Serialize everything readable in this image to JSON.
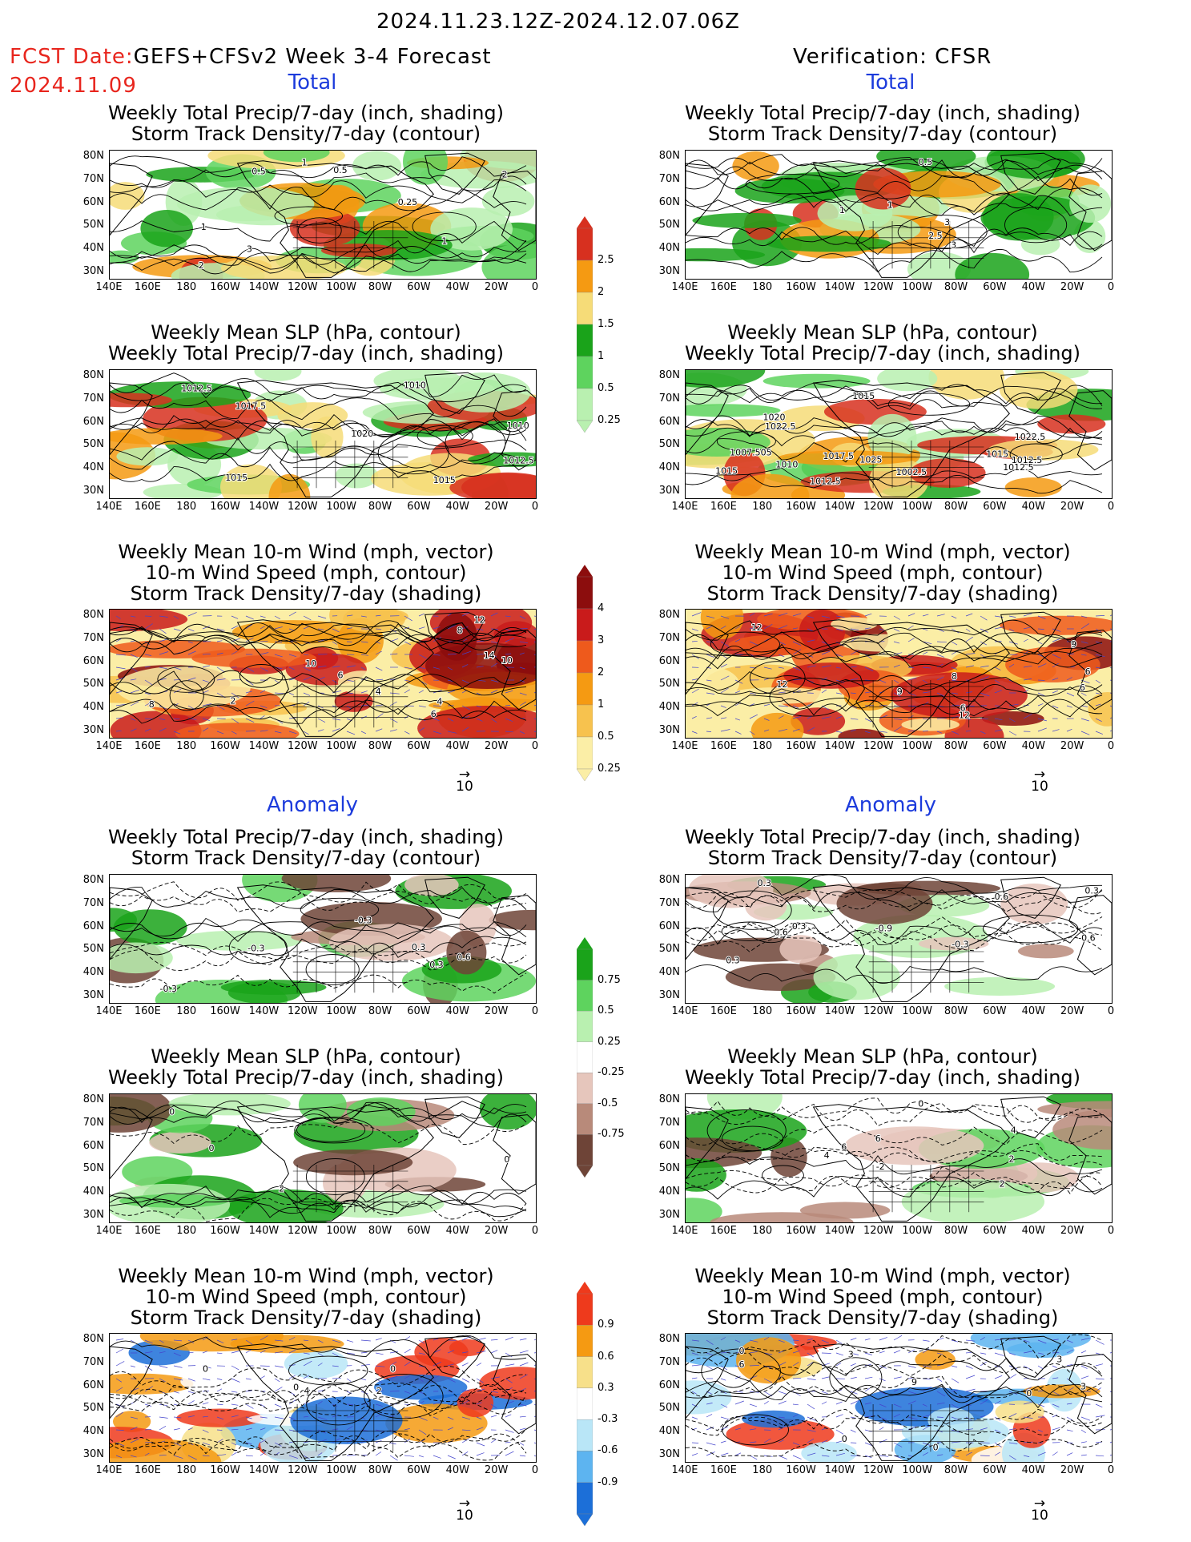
{
  "header": {
    "date_range": "2024.11.23.12Z-2024.12.07.06Z",
    "fcst_label": "FCST Date:",
    "fcst_model": "GEFS+CFSv2 Week 3-4 Forecast",
    "fcst_date": "2024.11.09",
    "verification": "Verification: CFSR"
  },
  "sections": {
    "total": "Total",
    "anomaly": "Anomaly"
  },
  "titles": {
    "precip_storm": [
      "Weekly Total Precip/7-day (inch, shading)",
      "Storm Track Density/7-day (contour)"
    ],
    "slp_precip": [
      "Weekly Mean SLP (hPa, contour)",
      "Weekly Total Precip/7-day (inch, shading)"
    ],
    "wind_storm": [
      "Weekly Mean 10-m Wind (mph, vector)",
      "10-m Wind Speed (mph, contour)",
      "Storm Track Density/7-day (shading)"
    ]
  },
  "axes": {
    "lat_ticks": [
      "80N",
      "70N",
      "60N",
      "50N",
      "40N",
      "30N"
    ],
    "lon_ticks": [
      "140E",
      "160E",
      "180",
      "160W",
      "140W",
      "120W",
      "100W",
      "80W",
      "60W",
      "40W",
      "20W",
      "0"
    ]
  },
  "vector_ref": "10",
  "colorbars": {
    "precip_total": {
      "labels": [
        "2.5",
        "2",
        "1.5",
        "1",
        "0.5",
        "0.25"
      ],
      "colors": [
        "#d7301f",
        "#f59a12",
        "#f6dc78",
        "#1aa31a",
        "#5ed35e",
        "#b9f0b0"
      ]
    },
    "storm_total": {
      "labels": [
        "4",
        "3",
        "2",
        "1",
        "0.5",
        "0.25"
      ],
      "colors": [
        "#8c0d0d",
        "#c91b1b",
        "#ee5a1c",
        "#f59a12",
        "#f7c24e",
        "#fbeea6"
      ]
    },
    "precip_anom": {
      "labels": [
        "0.75",
        "0.5",
        "0.25",
        "-0.25",
        "-0.5",
        "-0.75"
      ],
      "colors": [
        "#1aa31a",
        "#5ed35e",
        "#b9f0b0",
        "#ffffff",
        "#e6c6bc",
        "#b88a7a",
        "#6e4437"
      ]
    },
    "storm_anom": {
      "labels": [
        "0.9",
        "0.6",
        "0.3",
        "-0.3",
        "-0.6",
        "-0.9"
      ],
      "colors": [
        "#ee3a1c",
        "#f59a12",
        "#f7e08a",
        "#ffffff",
        "#b9e6f7",
        "#5db4f0",
        "#1c6fd8"
      ]
    }
  },
  "contour_labels": {
    "l1": [
      "0.5",
      "1",
      "3",
      "2",
      "1",
      "0.5",
      "0.25",
      "1",
      "2"
    ],
    "r1": [
      "0.5",
      "1",
      "3",
      "2.5",
      "1",
      "3"
    ],
    "l2": [
      "1015",
      "1012.5",
      "1012.5",
      "1010",
      "1015",
      "1010",
      "1017.5",
      "1020"
    ],
    "r2": [
      "1015",
      "1012.5",
      "1017.5",
      "1015",
      "1020",
      "1022.5",
      "1007.505",
      "1012.5",
      "1010",
      "1025",
      "1002.5",
      "1012.5",
      "1015",
      "1022.5"
    ],
    "l3": [
      "2",
      "10",
      "4",
      "6",
      "8",
      "12",
      "8",
      "10",
      "14",
      "4",
      "6"
    ],
    "r3": [
      "9",
      "12",
      "6",
      "12",
      "9",
      "6",
      "8",
      "6",
      "12"
    ],
    "l4": [
      "0.3",
      "0.3",
      "-0.3",
      "-0.3",
      "0.6",
      "-0.3"
    ],
    "r4": [
      "-0.6",
      "-0.9",
      "-0.3",
      "0.3",
      "0.6",
      "-0.6",
      "-0.3",
      "0.3",
      "0.3"
    ],
    "l5": [
      "0",
      "0",
      "0",
      "2"
    ],
    "r5": [
      "6",
      "2",
      "4",
      "2",
      "0",
      "6",
      "4",
      "-2"
    ],
    "l6": [
      "0",
      "0",
      "2",
      "0",
      "4"
    ],
    "r6": [
      "3",
      "0",
      "3",
      "0",
      "0",
      "9",
      "3",
      "0",
      "6"
    ]
  }
}
